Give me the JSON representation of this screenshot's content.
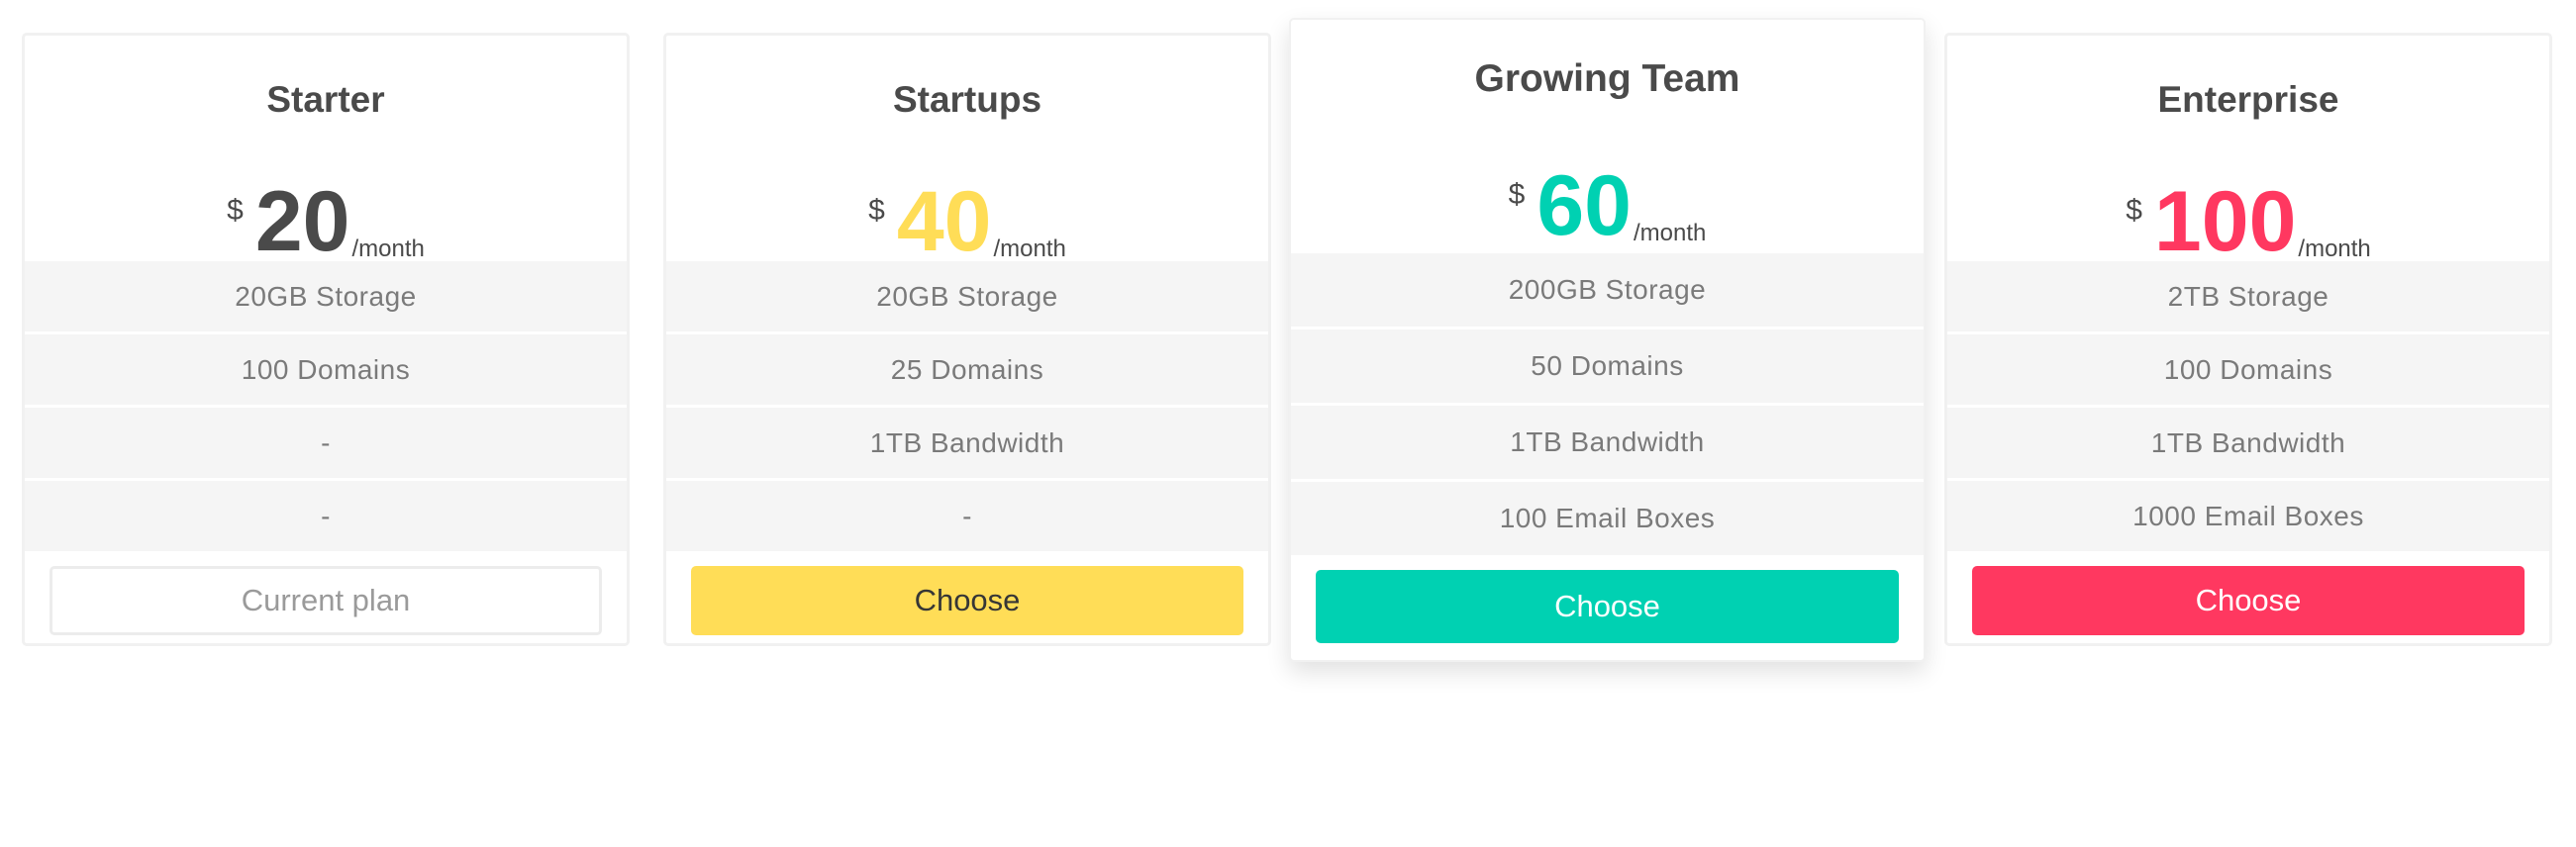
{
  "plans": [
    {
      "title": "Starter",
      "currency": "$",
      "amount": "20",
      "period": "/month",
      "color": "#4a4a4a",
      "features": [
        "20GB Storage",
        "100 Domains",
        "-",
        "-"
      ],
      "button": {
        "label": "Current plan",
        "bg": "#ffffff",
        "fg": "#9a9a9a"
      }
    },
    {
      "title": "Startups",
      "currency": "$",
      "amount": "40",
      "period": "/month",
      "color": "#ffdd57",
      "features": [
        "20GB Storage",
        "25 Domains",
        "1TB Bandwidth",
        "-"
      ],
      "button": {
        "label": "Choose",
        "bg": "#ffdd57",
        "fg": "#363636"
      }
    },
    {
      "title": "Growing Team",
      "currency": "$",
      "amount": "60",
      "period": "/month",
      "color": "#00d1b2",
      "features": [
        "200GB Storage",
        "50 Domains",
        "1TB Bandwidth",
        "100 Email Boxes"
      ],
      "button": {
        "label": "Choose",
        "bg": "#00d1b2",
        "fg": "#ffffff"
      }
    },
    {
      "title": "Enterprise",
      "currency": "$",
      "amount": "100",
      "period": "/month",
      "color": "#ff3860",
      "features": [
        "2TB Storage",
        "100 Domains",
        "1TB Bandwidth",
        "1000 Email Boxes"
      ],
      "button": {
        "label": "Choose",
        "bg": "#ff3860",
        "fg": "#ffffff"
      }
    }
  ]
}
